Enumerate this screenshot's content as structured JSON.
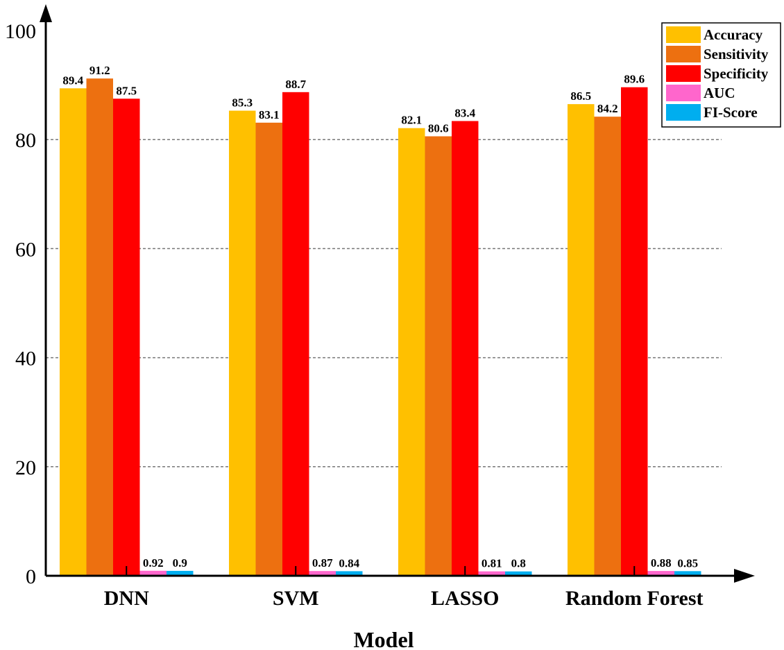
{
  "chart_data": {
    "type": "bar",
    "title": "",
    "xlabel": "Model",
    "ylabel": "",
    "ylim": [
      0,
      100
    ],
    "yticks": [
      0,
      20,
      40,
      60,
      80,
      100
    ],
    "grid": true,
    "legend_position": "top-right",
    "categories": [
      "DNN",
      "SVM",
      "LASSO",
      "Random Forest"
    ],
    "series": [
      {
        "name": "Accuracy",
        "color": "#FFC000",
        "values": [
          89.4,
          85.3,
          82.1,
          86.5
        ],
        "labels": [
          "89.4",
          "85.3",
          "82.1",
          "86.5"
        ]
      },
      {
        "name": "Sensitivity",
        "color": "#ED7010",
        "values": [
          91.2,
          83.1,
          80.6,
          84.2
        ],
        "labels": [
          "91.2",
          "83.1",
          "80.6",
          "84.2"
        ]
      },
      {
        "name": "Specificity",
        "color": "#FF0000",
        "values": [
          87.5,
          88.7,
          83.4,
          89.6
        ],
        "labels": [
          "87.5",
          "88.7",
          "83.4",
          "89.6"
        ]
      },
      {
        "name": "AUC",
        "color": "#FF66CC",
        "values": [
          0.92,
          0.87,
          0.81,
          0.88
        ],
        "labels": [
          "0.92",
          "0.87",
          "0.81",
          "0.88"
        ]
      },
      {
        "name": "FI-Score",
        "color": "#00AEEF",
        "values": [
          0.9,
          0.84,
          0.8,
          0.85
        ],
        "labels": [
          "0.9",
          "0.84",
          "0.8",
          "0.85"
        ]
      }
    ]
  }
}
